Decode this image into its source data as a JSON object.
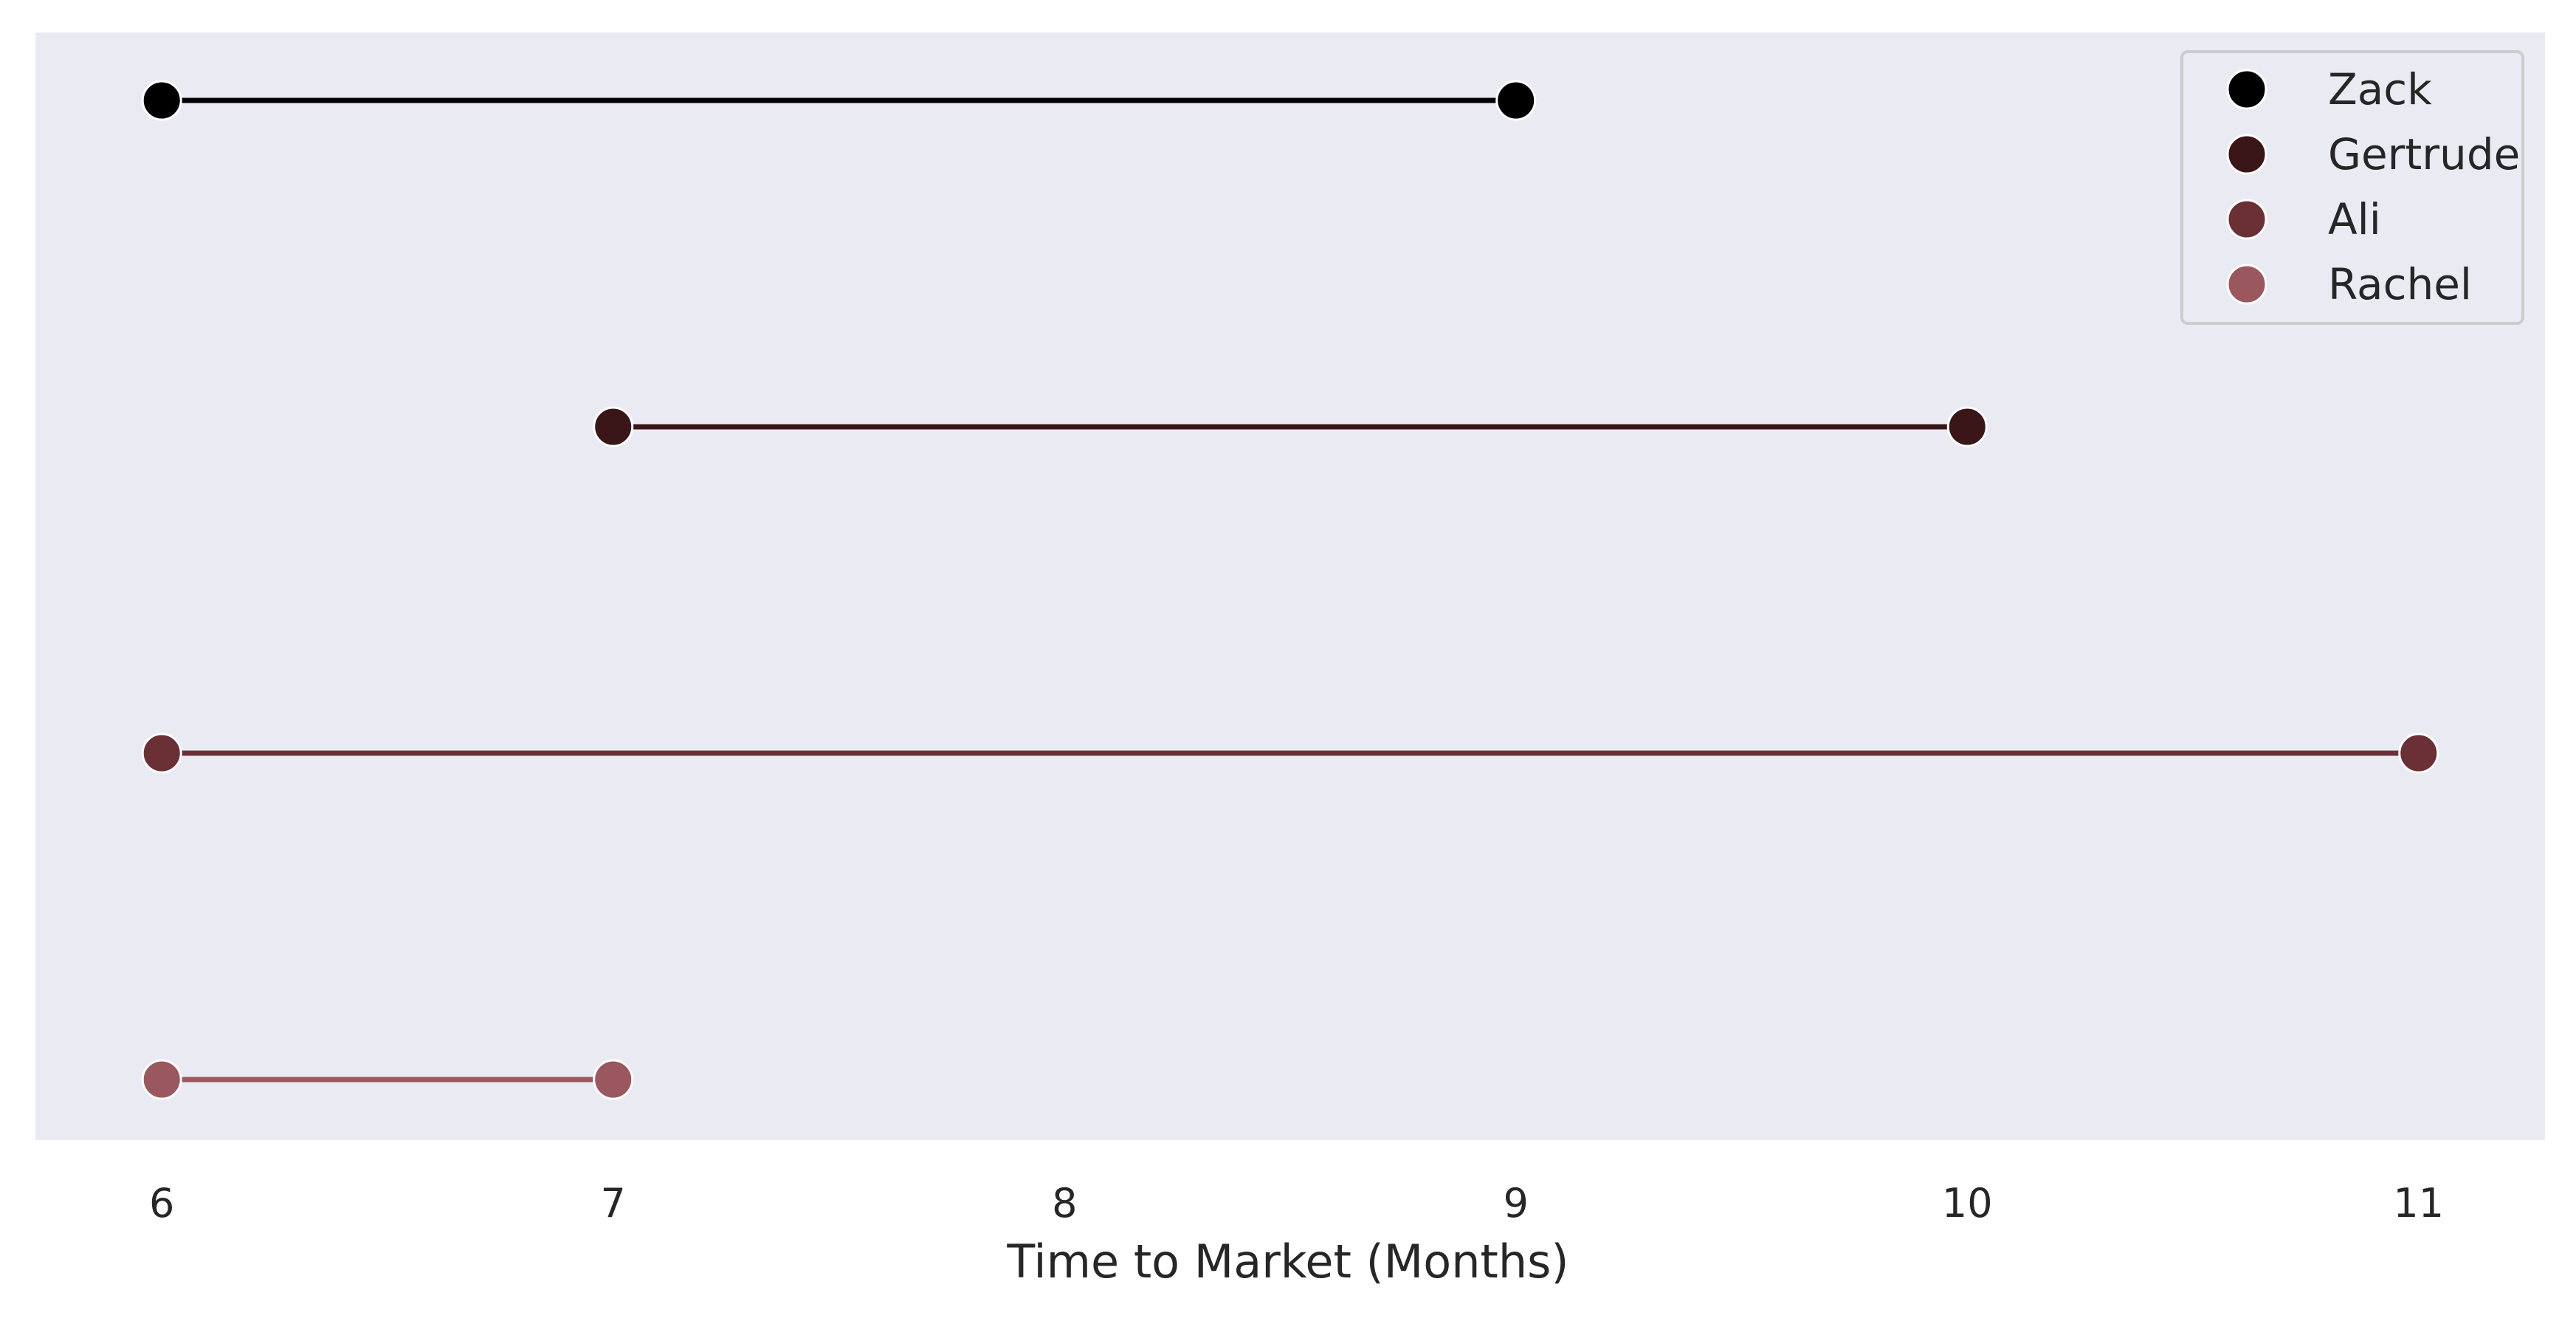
{
  "chart_data": {
    "type": "dumbbell",
    "title": "",
    "xlabel": "Time to Market (Months)",
    "ylabel": "",
    "xlim": [
      5.72,
      11.28
    ],
    "xticks": [
      6,
      7,
      8,
      9,
      10,
      11
    ],
    "xtick_labels": [
      "6",
      "7",
      "8",
      "9",
      "10",
      "11"
    ],
    "grid": false,
    "background": "#eaeaf2",
    "legend_position": "top-right",
    "series": [
      {
        "name": "Zack",
        "start": 6,
        "end": 9,
        "color": "#000000"
      },
      {
        "name": "Gertrude",
        "start": 7,
        "end": 10,
        "color": "#3a1618"
      },
      {
        "name": "Ali",
        "start": 6,
        "end": 11,
        "color": "#6b3036"
      },
      {
        "name": "Rachel",
        "start": 6,
        "end": 7,
        "color": "#9a585e"
      }
    ]
  }
}
